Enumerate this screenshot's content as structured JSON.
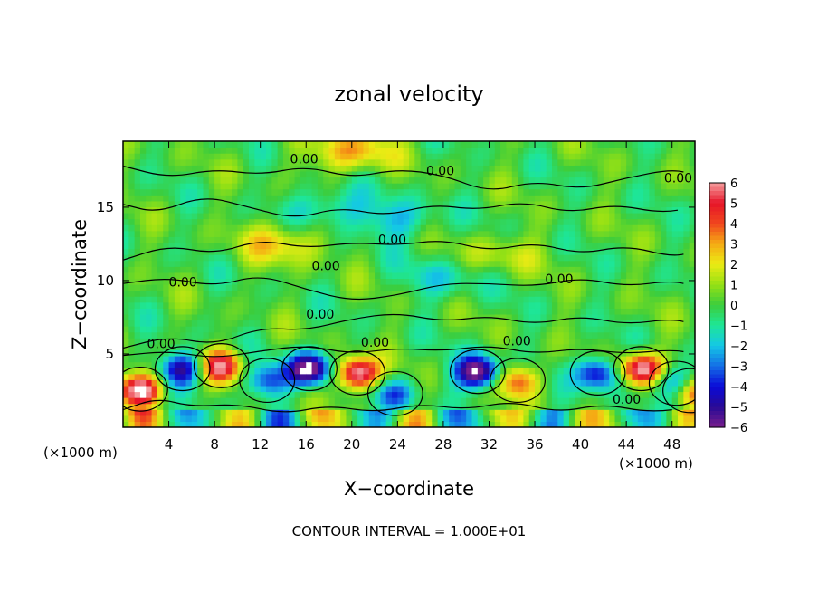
{
  "chart_data": {
    "type": "heatmap",
    "title": "zonal velocity",
    "xlabel": "X−coordinate",
    "ylabel": "Z−coordinate",
    "x_unit": "(×1000 m)",
    "x_unit_right": "(×1000 m)",
    "xlim": [
      0,
      50
    ],
    "ylim": [
      0,
      19.5
    ],
    "x_ticks": [
      4,
      8,
      12,
      16,
      20,
      24,
      28,
      32,
      36,
      40,
      44,
      48
    ],
    "y_ticks": [
      5,
      10,
      15
    ],
    "colorbar": {
      "ticks": [
        "6",
        "5",
        "4",
        "3",
        "2",
        "1",
        "0",
        "−1",
        "−2",
        "−3",
        "−4",
        "−5",
        "−6"
      ],
      "range": [
        -6,
        6
      ]
    },
    "contour_labels": [
      "0.00",
      "0.00",
      "0.00",
      "0.00",
      "0.00",
      "0.00",
      "0.00",
      "0.00",
      "0.00",
      "0.00",
      "0.00",
      "0.00"
    ],
    "footnote": "CONTOUR INTERVAL = 1.000E+01",
    "features": [
      {
        "kind": "pos",
        "x": 1.5,
        "z": 2.6,
        "amp": 7
      },
      {
        "kind": "neg",
        "x": 5.2,
        "z": 4.0,
        "amp": 5
      },
      {
        "kind": "pos",
        "x": 8.6,
        "z": 4.2,
        "amp": 5.5
      },
      {
        "kind": "neg",
        "x": 12.6,
        "z": 3.2,
        "amp": 3.5
      },
      {
        "kind": "neg",
        "x": 16.3,
        "z": 4.0,
        "amp": 7
      },
      {
        "kind": "pos",
        "x": 20.5,
        "z": 3.7,
        "amp": 7
      },
      {
        "kind": "neg",
        "x": 23.8,
        "z": 2.3,
        "amp": 3
      },
      {
        "kind": "neg",
        "x": 31.0,
        "z": 3.8,
        "amp": 7
      },
      {
        "kind": "pos",
        "x": 34.5,
        "z": 3.2,
        "amp": 4
      },
      {
        "kind": "neg",
        "x": 41.5,
        "z": 3.7,
        "amp": 5
      },
      {
        "kind": "pos",
        "x": 45.3,
        "z": 4.0,
        "amp": 6.5
      },
      {
        "kind": "neg",
        "x": 48.4,
        "z": 3.0,
        "amp": 4
      },
      {
        "kind": "pos",
        "x": 49.6,
        "z": 2.5,
        "amp": 4
      },
      {
        "kind": "pos",
        "x": 19.9,
        "z": 18.8,
        "amp": 3
      },
      {
        "kind": "neg",
        "x": 18.0,
        "z": 15.0,
        "amp": 2
      },
      {
        "kind": "neg",
        "x": 24.0,
        "z": 14.2,
        "amp": 2
      },
      {
        "kind": "pos",
        "x": 14.0,
        "z": 12.6,
        "amp": 2.5
      },
      {
        "kind": "pos",
        "x": 33.0,
        "z": 11.8,
        "amp": 1.5
      },
      {
        "kind": "neg",
        "x": 28.0,
        "z": 10.2,
        "amp": 1.5
      }
    ]
  }
}
